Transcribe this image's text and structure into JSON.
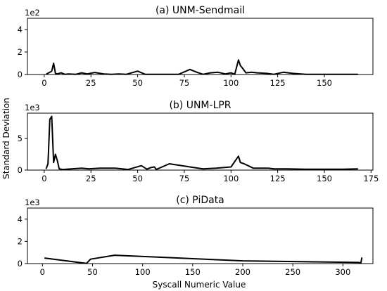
{
  "figure": {
    "ylabel": "Standard Deviation",
    "xlabel": "Syscall Numeric Value"
  },
  "chart_data": [
    {
      "type": "line",
      "title": "(a) UNM-Sendmail",
      "multiplier": "1e2",
      "xlim": [
        -9,
        176
      ],
      "ylim": [
        0,
        5
      ],
      "xticks": [
        "0",
        "25",
        "50",
        "75",
        "100",
        "125",
        "150"
      ],
      "xtick_values": [
        0,
        25,
        50,
        75,
        100,
        125,
        150
      ],
      "yticks": [
        "0",
        "2",
        "4"
      ],
      "ytick_values": [
        0,
        2,
        4
      ],
      "series": [
        {
          "x": [
            1,
            3,
            4,
            5,
            6,
            7,
            9,
            11,
            13,
            17,
            20,
            23,
            27,
            32,
            36,
            40,
            44,
            50,
            54,
            60,
            66,
            72,
            78,
            82,
            85,
            89,
            93,
            97,
            100,
            102,
            104,
            105,
            106,
            108,
            111,
            114,
            119,
            123,
            128,
            133,
            140,
            150,
            160,
            168
          ],
          "y": [
            0.02,
            0.2,
            0.3,
            1.0,
            0.1,
            0.05,
            0.15,
            0.02,
            0.05,
            0.02,
            0.15,
            0.05,
            0.18,
            0.05,
            0.02,
            0.05,
            0.02,
            0.3,
            0.02,
            0.02,
            0.02,
            0.02,
            0.45,
            0.18,
            0.02,
            0.15,
            0.2,
            0.05,
            0.15,
            0.02,
            1.3,
            0.8,
            0.6,
            0.15,
            0.2,
            0.15,
            0.1,
            0.02,
            0.2,
            0.1,
            0.02,
            0.02,
            0.02,
            0.02
          ]
        }
      ]
    },
    {
      "type": "line",
      "title": "(b) UNM-LPR",
      "multiplier": "1e3",
      "xlim": [
        -9,
        176
      ],
      "ylim": [
        0,
        9
      ],
      "xticks": [
        "0",
        "25",
        "50",
        "75",
        "100",
        "125",
        "150",
        "175"
      ],
      "xtick_values": [
        0,
        25,
        50,
        75,
        100,
        125,
        150,
        175
      ],
      "yticks": [
        "0",
        "5"
      ],
      "ytick_values": [
        0,
        5
      ],
      "series": [
        {
          "x": [
            1,
            2,
            3,
            4,
            5,
            6,
            7,
            8,
            10,
            20,
            24,
            30,
            38,
            45,
            52,
            55,
            57,
            59,
            60,
            67,
            78,
            85,
            92,
            96,
            100,
            104,
            105,
            107,
            112,
            120,
            123,
            130,
            140,
            150,
            160,
            168
          ],
          "y": [
            0.2,
            1.0,
            8.0,
            8.5,
            1.2,
            2.5,
            1.5,
            0.2,
            0.1,
            0.3,
            0.2,
            0.3,
            0.3,
            0.1,
            0.7,
            0.15,
            0.4,
            0.5,
            0.1,
            1.0,
            0.5,
            0.2,
            0.3,
            0.4,
            0.5,
            2.2,
            1.2,
            1.0,
            0.3,
            0.3,
            0.2,
            0.2,
            0.15,
            0.15,
            0.15,
            0.2
          ]
        }
      ]
    },
    {
      "type": "line",
      "title": "(c) PiData",
      "multiplier": "1e3",
      "xlim": [
        -15,
        330
      ],
      "ylim": [
        0,
        5
      ],
      "xticks": [
        "0",
        "50",
        "100",
        "150",
        "200",
        "250",
        "300"
      ],
      "xtick_values": [
        0,
        50,
        100,
        150,
        200,
        250,
        300
      ],
      "yticks": [
        "0",
        "2",
        "4"
      ],
      "ytick_values": [
        0,
        2,
        4
      ],
      "series": [
        {
          "x": [
            2,
            44,
            48,
            72,
            200,
            316,
            318,
            319
          ],
          "y": [
            0.5,
            0.02,
            0.4,
            0.75,
            0.25,
            0.1,
            0.05,
            0.55
          ]
        }
      ]
    }
  ]
}
